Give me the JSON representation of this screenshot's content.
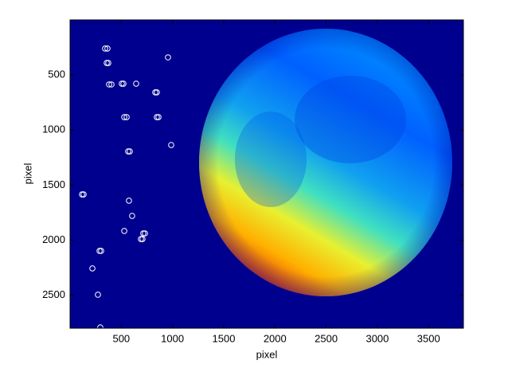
{
  "chart_data": {
    "type": "scatter",
    "xlabel": "pixel",
    "ylabel": "pixel",
    "x": [
      342,
      365,
      358,
      373,
      381,
      404,
      505,
      521,
      645,
      832,
      847,
      956,
      529,
      552,
      847,
      863,
      987,
      567,
      583,
      117,
      132,
      575,
      606,
      715,
      731,
      529,
      692,
      707,
      288,
      303,
      218,
      272,
      295
    ],
    "y": [
      260,
      260,
      391,
      391,
      586,
      586,
      579,
      579,
      579,
      658,
      658,
      340,
      883,
      883,
      883,
      883,
      1136,
      1194,
      1194,
      1585,
      1585,
      1642,
      1780,
      1939,
      1939,
      1917,
      1990,
      1990,
      2098,
      2098,
      2257,
      2496,
      2793
    ],
    "color": "#ffffff",
    "xlim": [
      0,
      3840
    ],
    "ylim": [
      0,
      2800
    ],
    "y_inverted": true,
    "xticks": [
      500,
      1000,
      1500,
      2000,
      2500,
      3000,
      3500
    ],
    "yticks": [
      500,
      1000,
      1500,
      2000,
      2500
    ]
  }
}
